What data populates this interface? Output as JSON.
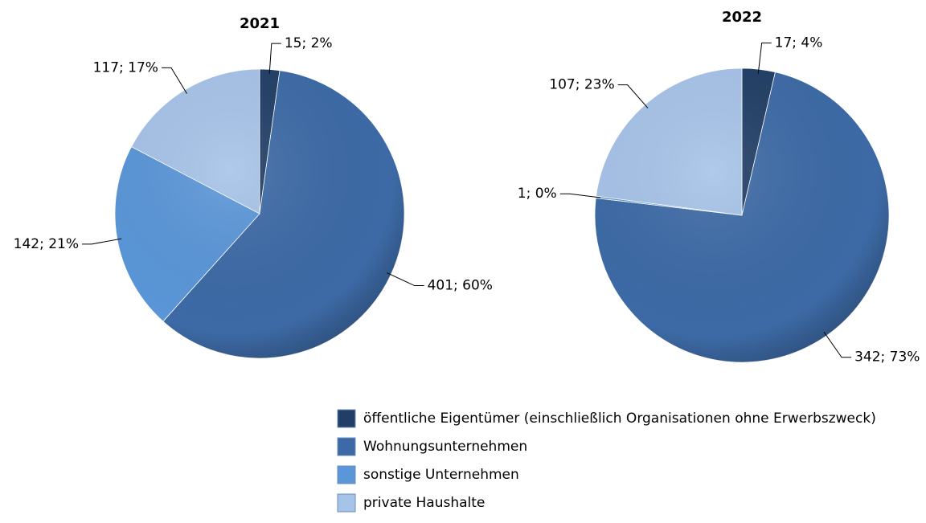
{
  "chart_data": [
    {
      "type": "pie",
      "title": "2021",
      "categories": [
        "öffentliche Eigentümer (einschließlich Organisationen ohne Erwerbszweck)",
        "Wohnungsunternehmen",
        "sonstige Unternehmen",
        "private Haushalte"
      ],
      "values": [
        15,
        401,
        142,
        117
      ],
      "value_labels": [
        "15; 2%",
        "401; 60%",
        "142; 21%",
        "117; 17%"
      ],
      "colors": [
        "#213f66",
        "#3d6aa6",
        "#5a96d8",
        "#a6c3e8"
      ]
    },
    {
      "type": "pie",
      "title": "2022",
      "categories": [
        "öffentliche Eigentümer (einschließlich Organisationen ohne Erwerbszweck)",
        "Wohnungsunternehmen",
        "sonstige Unternehmen",
        "private Haushalte"
      ],
      "values": [
        17,
        342,
        1,
        107
      ],
      "value_labels": [
        "17; 4%",
        "342; 73%",
        "1; 0%",
        "107; 23%"
      ],
      "colors": [
        "#213f66",
        "#3d6aa6",
        "#5a96d8",
        "#a6c3e8"
      ]
    }
  ]
}
